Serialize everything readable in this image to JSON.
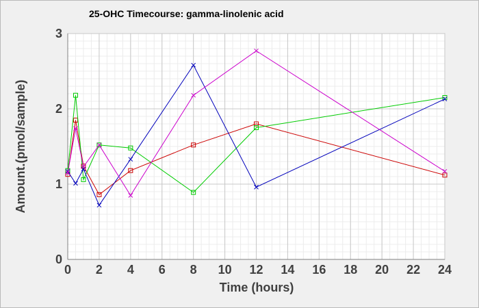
{
  "chart_data": {
    "type": "line",
    "title": "25-OHC Timecourse: gamma-linolenic acid",
    "xlabel": "Time (hours)",
    "ylabel": "Amount.(pmol/sample)",
    "xlim": [
      0,
      24
    ],
    "ylim": [
      0,
      3
    ],
    "xticks": [
      0,
      2,
      4,
      6,
      8,
      10,
      12,
      14,
      16,
      18,
      20,
      22,
      24
    ],
    "yticks": [
      0,
      1,
      2,
      3
    ],
    "grid": true,
    "legend": "none",
    "series": [
      {
        "color": "#cc0000",
        "marker": "square",
        "x": [
          0,
          0.5,
          1,
          2,
          4,
          8,
          12,
          24
        ],
        "y": [
          1.13,
          1.85,
          1.24,
          0.86,
          1.18,
          1.52,
          1.8,
          1.12
        ]
      },
      {
        "color": "#00cc00",
        "marker": "square",
        "x": [
          0,
          0.5,
          1,
          2,
          4,
          8,
          12,
          24
        ],
        "y": [
          1.18,
          2.18,
          1.06,
          1.52,
          1.48,
          0.89,
          1.75,
          2.15
        ]
      },
      {
        "color": "#0000bb",
        "marker": "x",
        "x": [
          0,
          0.5,
          1,
          2,
          4,
          8,
          12,
          24
        ],
        "y": [
          1.17,
          1.01,
          1.2,
          0.72,
          1.33,
          2.58,
          0.96,
          2.13
        ]
      },
      {
        "color": "#cc00cc",
        "marker": "x",
        "x": [
          0,
          0.5,
          1,
          2,
          4,
          8,
          12,
          24
        ],
        "y": [
          1.15,
          1.74,
          1.23,
          1.52,
          0.85,
          2.18,
          2.77,
          1.17
        ]
      }
    ]
  }
}
